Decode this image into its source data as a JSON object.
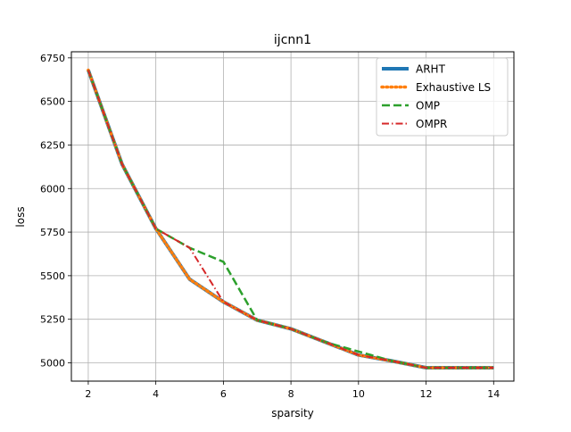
{
  "chart_data": {
    "type": "line",
    "title": "ijcnn1",
    "xlabel": "sparsity",
    "ylabel": "loss",
    "xlim": [
      1.5,
      14.6
    ],
    "ylim": [
      4895,
      6785
    ],
    "xticks": [
      2,
      4,
      6,
      8,
      10,
      12,
      14
    ],
    "yticks": [
      5000,
      5250,
      5500,
      5750,
      6000,
      6250,
      6500,
      6750
    ],
    "grid": true,
    "legend_position": "top-right",
    "x": [
      2,
      3,
      4,
      5,
      6,
      7,
      8,
      9,
      10,
      11,
      12,
      13,
      14
    ],
    "series": [
      {
        "name": "ARHT",
        "color": "#1f77b4",
        "style": "solid",
        "values": [
          6680,
          6140,
          5770,
          5480,
          5350,
          5245,
          5195,
          5120,
          5045,
          5010,
          4972,
          4972,
          4972
        ]
      },
      {
        "name": "Exhaustive LS",
        "color": "#ff7f0e",
        "style": "dotted",
        "values": [
          6680,
          6140,
          5770,
          5480,
          5350,
          5245,
          5195,
          5120,
          5045,
          5010,
          4972,
          4972,
          4972
        ]
      },
      {
        "name": "OMP",
        "color": "#2ca02c",
        "style": "dashed",
        "values": [
          6680,
          6140,
          5770,
          5660,
          5580,
          5245,
          5195,
          5120,
          5065,
          5010,
          4972,
          4972,
          4972
        ]
      },
      {
        "name": "OMPR",
        "color": "#d62728",
        "style": "dashdot",
        "values": [
          6680,
          6140,
          5770,
          5660,
          5350,
          5245,
          5195,
          5120,
          5045,
          5010,
          4972,
          4972,
          4972
        ]
      }
    ]
  }
}
